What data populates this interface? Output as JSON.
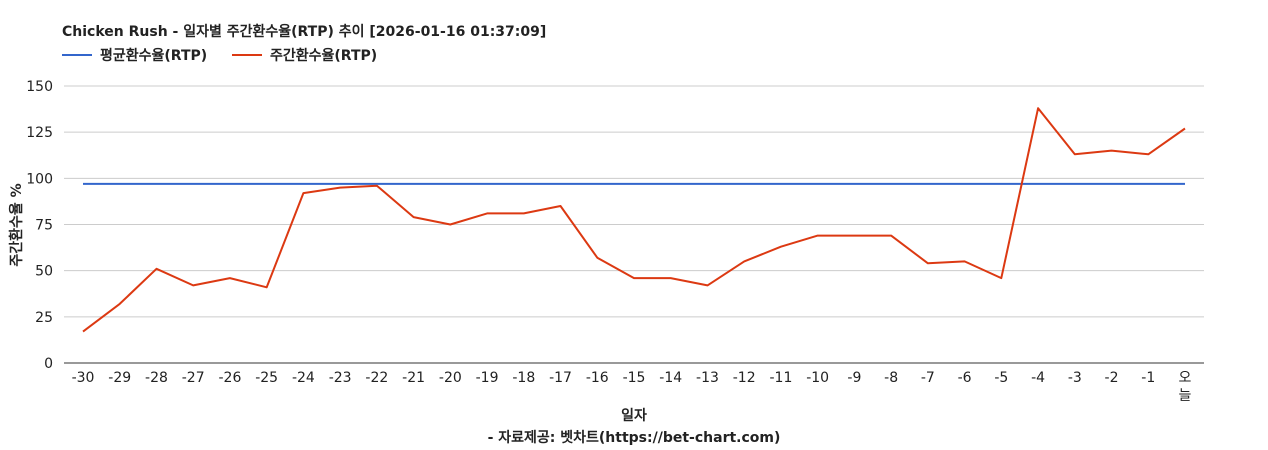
{
  "chart_data": {
    "type": "line",
    "title": "Chicken Rush - 일자별 주간환수율(RTP) 추이 [2026-01-16 01:37:09]",
    "xlabel": "일자",
    "ylabel": "주간환수율 %",
    "source": "- 자료제공: 벳차트(https://bet-chart.com)",
    "legend_position": "top-left",
    "ylim": [
      0,
      150
    ],
    "yticks": [
      0,
      25,
      50,
      75,
      100,
      125,
      150
    ],
    "grid": true,
    "categories": [
      "-30",
      "-29",
      "-28",
      "-27",
      "-26",
      "-25",
      "-24",
      "-23",
      "-22",
      "-21",
      "-20",
      "-19",
      "-18",
      "-17",
      "-16",
      "-15",
      "-14",
      "-13",
      "-12",
      "-11",
      "-10",
      "-9",
      "-8",
      "-7",
      "-6",
      "-5",
      "-4",
      "-3",
      "-2",
      "-1",
      "오늘"
    ],
    "series": [
      {
        "name": "평균환수율(RTP)",
        "color": "#3366cc",
        "values": [
          97,
          97,
          97,
          97,
          97,
          97,
          97,
          97,
          97,
          97,
          97,
          97,
          97,
          97,
          97,
          97,
          97,
          97,
          97,
          97,
          97,
          97,
          97,
          97,
          97,
          97,
          97,
          97,
          97,
          97,
          97
        ]
      },
      {
        "name": "주간환수율(RTP)",
        "color": "#dc3912",
        "values": [
          17,
          32,
          51,
          42,
          46,
          41,
          92,
          95,
          96,
          79,
          75,
          81,
          81,
          85,
          57,
          46,
          46,
          42,
          55,
          63,
          69,
          69,
          69,
          54,
          55,
          46,
          138,
          113,
          115,
          113,
          127
        ]
      }
    ]
  }
}
